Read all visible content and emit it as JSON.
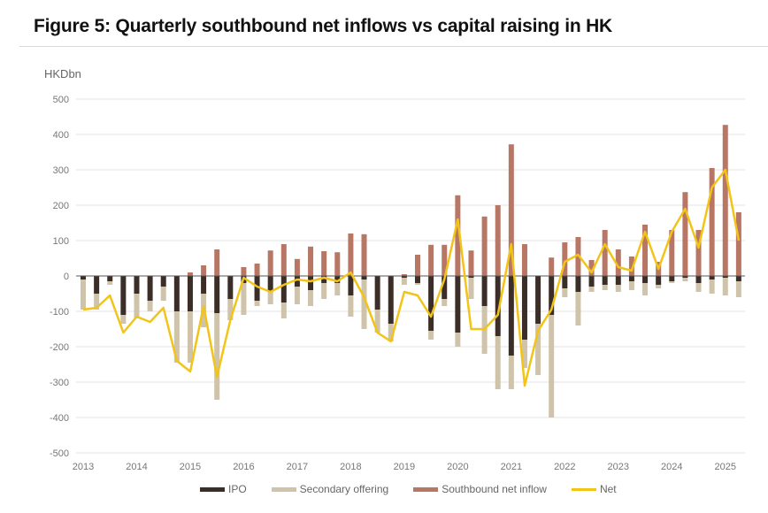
{
  "title": "Figure 5: Quarterly southbound net inflows vs capital raising in HK",
  "chart_data": {
    "type": "bar",
    "title": "Figure 5: Quarterly southbound net inflows vs capital raising in HK",
    "ylabel": "HKDbn",
    "xlabel": "",
    "ylim": [
      -500,
      500
    ],
    "yticks": [
      500,
      400,
      300,
      200,
      100,
      0,
      -100,
      -200,
      -300,
      -400,
      -500
    ],
    "grid": true,
    "legend_position": "bottom",
    "x_tick_labels": [
      "2013",
      "2014",
      "2015",
      "2016",
      "2017",
      "2018",
      "2019",
      "2020",
      "2021",
      "2022",
      "2023",
      "2024",
      "2025"
    ],
    "categories": [
      "2013Q1",
      "2013Q2",
      "2013Q3",
      "2013Q4",
      "2014Q1",
      "2014Q2",
      "2014Q3",
      "2014Q4",
      "2015Q1",
      "2015Q2",
      "2015Q3",
      "2015Q4",
      "2016Q1",
      "2016Q2",
      "2016Q3",
      "2016Q4",
      "2017Q1",
      "2017Q2",
      "2017Q3",
      "2017Q4",
      "2018Q1",
      "2018Q2",
      "2018Q3",
      "2018Q4",
      "2019Q1",
      "2019Q2",
      "2019Q3",
      "2019Q4",
      "2020Q1",
      "2020Q2",
      "2020Q3",
      "2020Q4",
      "2021Q1",
      "2021Q2",
      "2021Q3",
      "2021Q4",
      "2022Q1",
      "2022Q2",
      "2022Q3",
      "2022Q4",
      "2023Q1",
      "2023Q2",
      "2023Q3",
      "2023Q4",
      "2024Q1",
      "2024Q2",
      "2024Q3",
      "2024Q4",
      "2025Q1",
      "2025Q2"
    ],
    "series": [
      {
        "name": "IPO",
        "color": "#3b2e28",
        "kind": "bar",
        "values": [
          -10,
          -50,
          -15,
          -110,
          -50,
          -70,
          -30,
          -100,
          -100,
          -50,
          -105,
          -65,
          -20,
          -70,
          -45,
          -75,
          -30,
          -40,
          -20,
          -20,
          -55,
          -10,
          -95,
          -135,
          -5,
          -20,
          -155,
          -65,
          -160,
          -5,
          -85,
          -170,
          -225,
          -180,
          -135,
          -110,
          -35,
          -45,
          -30,
          -25,
          -25,
          -15,
          -20,
          -25,
          -15,
          -5,
          -20,
          -10,
          -5,
          -15
        ]
      },
      {
        "name": "Secondary offering",
        "color": "#cfc3a9",
        "kind": "bar",
        "values": [
          -85,
          -45,
          -10,
          -25,
          -70,
          -30,
          -40,
          -145,
          -145,
          -95,
          -245,
          -60,
          -90,
          -15,
          -35,
          -45,
          -50,
          -45,
          -45,
          -35,
          -60,
          -140,
          -65,
          -50,
          -20,
          -5,
          -25,
          -20,
          -40,
          -60,
          -135,
          -150,
          -95,
          -80,
          -145,
          -290,
          -25,
          -95,
          -15,
          -15,
          -20,
          -25,
          -35,
          -10,
          -5,
          -10,
          -25,
          -40,
          -50,
          -45
        ]
      },
      {
        "name": "Southbound net inflow",
        "color": "#b87765",
        "kind": "bar",
        "values": [
          0,
          0,
          0,
          0,
          0,
          0,
          0,
          0,
          10,
          30,
          75,
          0,
          25,
          35,
          72,
          90,
          48,
          83,
          70,
          67,
          120,
          118,
          0,
          0,
          5,
          60,
          88,
          88,
          228,
          72,
          168,
          200,
          372,
          90,
          0,
          52,
          95,
          110,
          45,
          130,
          75,
          55,
          145,
          40,
          130,
          237,
          130,
          305,
          427,
          180
        ]
      },
      {
        "name": "Net",
        "color": "#f2c418",
        "kind": "line",
        "values": [
          -95,
          -90,
          -55,
          -160,
          -115,
          -130,
          -90,
          -240,
          -270,
          -85,
          -285,
          -125,
          -5,
          -30,
          -45,
          -25,
          -10,
          -15,
          -5,
          -15,
          10,
          -60,
          -160,
          -185,
          -45,
          -55,
          -115,
          -10,
          160,
          -150,
          -150,
          -110,
          90,
          -310,
          -155,
          -95,
          40,
          60,
          10,
          90,
          25,
          15,
          125,
          20,
          125,
          190,
          80,
          250,
          300,
          100
        ]
      }
    ]
  },
  "legend": [
    {
      "label": "IPO",
      "color": "#3b2e28",
      "type": "bar"
    },
    {
      "label": "Secondary offering",
      "color": "#cfc3a9",
      "type": "bar"
    },
    {
      "label": "Southbound net inflow",
      "color": "#b87765",
      "type": "bar"
    },
    {
      "label": "Net",
      "color": "#f2c418",
      "type": "line"
    }
  ]
}
